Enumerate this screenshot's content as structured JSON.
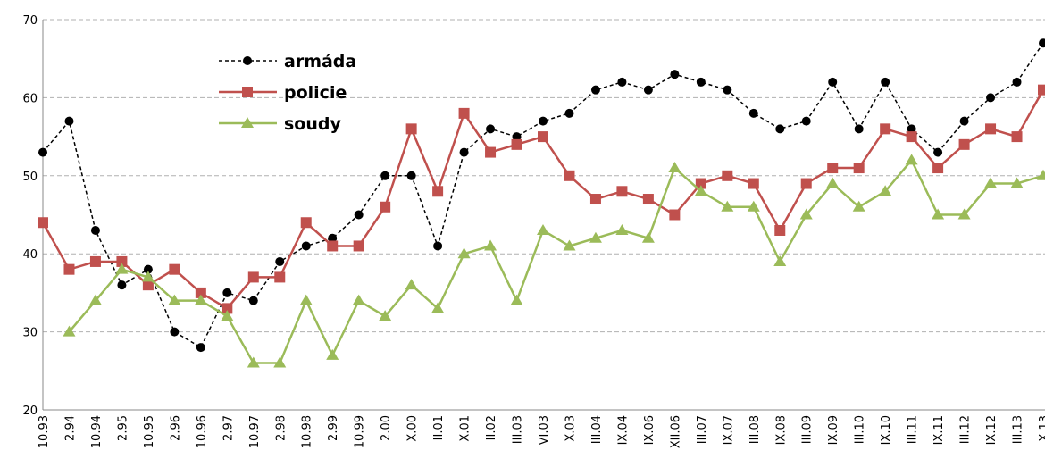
{
  "chart_data": {
    "type": "line",
    "categories": [
      "10.93",
      "2.94",
      "10.94",
      "2.95",
      "10.95",
      "2.96",
      "10.96",
      "2.97",
      "10.97",
      "2.98",
      "10.98",
      "2.99",
      "10.99",
      "2.00",
      "X.00",
      "II.01",
      "X.01",
      "II.02",
      "III.03",
      "VI.03",
      "X.03",
      "III.04",
      "IX.04",
      "IX.06",
      "XII.06",
      "III.07",
      "IX.07",
      "III.08",
      "IX.08",
      "III.09",
      "IX.09",
      "III.10",
      "IX.10",
      "III.11",
      "IX.11",
      "III.12",
      "IX.12",
      "III.13",
      "X.13"
    ],
    "series": [
      {
        "name": "armáda",
        "color": "#000000",
        "marker": "circle",
        "dash": true,
        "values": [
          53,
          57,
          43,
          36,
          38,
          30,
          28,
          35,
          34,
          39,
          41,
          42,
          45,
          50,
          50,
          41,
          53,
          56,
          55,
          57,
          58,
          61,
          62,
          61,
          63,
          62,
          61,
          58,
          56,
          57,
          62,
          56,
          62,
          56,
          53,
          57,
          60,
          62,
          67
        ]
      },
      {
        "name": "policie",
        "color": "#c0504d",
        "marker": "square",
        "dash": false,
        "values": [
          44,
          38,
          39,
          39,
          36,
          38,
          35,
          33,
          37,
          37,
          44,
          41,
          41,
          46,
          56,
          48,
          58,
          53,
          54,
          55,
          50,
          47,
          48,
          47,
          45,
          49,
          50,
          49,
          43,
          49,
          51,
          51,
          56,
          55,
          51,
          54,
          56,
          55,
          61
        ]
      },
      {
        "name": "soudy",
        "color": "#9bbb59",
        "marker": "triangle",
        "dash": false,
        "values": [
          null,
          30,
          34,
          38,
          37,
          34,
          34,
          32,
          26,
          26,
          34,
          27,
          34,
          32,
          36,
          33,
          40,
          41,
          34,
          43,
          41,
          42,
          43,
          42,
          51,
          48,
          46,
          46,
          39,
          45,
          49,
          46,
          48,
          52,
          45,
          45,
          49,
          49,
          50
        ]
      }
    ],
    "ylim": [
      20,
      70
    ],
    "yticks": [
      20,
      30,
      40,
      50,
      60,
      70
    ],
    "grid": true
  }
}
